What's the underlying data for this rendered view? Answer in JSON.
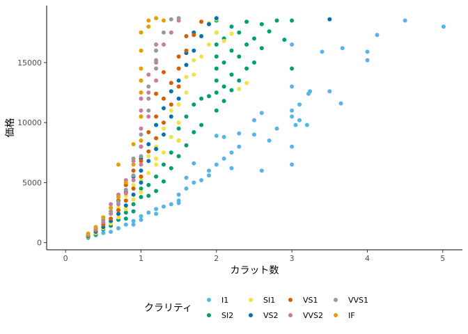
{
  "chart_data": {
    "type": "scatter",
    "xlabel": "カラット数",
    "ylabel": "価格",
    "xlim": [
      0,
      5.01
    ],
    "ylim": [
      326,
      18823
    ],
    "x_ticks": [
      "0",
      "1",
      "2",
      "3",
      "4",
      "5"
    ],
    "y_ticks": [
      "0",
      "5000",
      "10000",
      "15000"
    ],
    "legend_title": "クラリティ",
    "legend_position": "bottom",
    "grid": false,
    "series": [
      {
        "name": "I1",
        "color": "#56B4E9",
        "points": [
          [
            0.3,
            400
          ],
          [
            0.4,
            600
          ],
          [
            0.5,
            800
          ],
          [
            0.6,
            900
          ],
          [
            0.7,
            1200
          ],
          [
            0.8,
            1500
          ],
          [
            0.9,
            1800
          ],
          [
            1.0,
            2200
          ],
          [
            1.1,
            2500
          ],
          [
            1.2,
            2800
          ],
          [
            1.3,
            3000
          ],
          [
            1.4,
            3200
          ],
          [
            1.5,
            3500
          ],
          [
            1.5,
            4000
          ],
          [
            1.6,
            4500
          ],
          [
            1.7,
            5000
          ],
          [
            1.8,
            5200
          ],
          [
            1.9,
            6000
          ],
          [
            2.0,
            6500
          ],
          [
            2.1,
            7000
          ],
          [
            2.2,
            7500
          ],
          [
            2.3,
            8000
          ],
          [
            2.5,
            9000
          ],
          [
            2.6,
            6000
          ],
          [
            2.7,
            8500
          ],
          [
            2.8,
            9500
          ],
          [
            3.0,
            6500
          ],
          [
            3.0,
            8000
          ],
          [
            3.0,
            10500
          ],
          [
            3.0,
            11000
          ],
          [
            3.0,
            13000
          ],
          [
            3.0,
            16500
          ],
          [
            3.05,
            9800
          ],
          [
            3.1,
            10200
          ],
          [
            3.1,
            11500
          ],
          [
            3.2,
            9800
          ],
          [
            3.22,
            12400
          ],
          [
            3.24,
            12600
          ],
          [
            3.4,
            15900
          ],
          [
            3.5,
            12600
          ],
          [
            3.65,
            11600
          ],
          [
            3.67,
            16200
          ],
          [
            4.0,
            15200
          ],
          [
            4.0,
            15900
          ],
          [
            4.13,
            17300
          ],
          [
            4.5,
            18500
          ],
          [
            5.01,
            18000
          ],
          [
            2.0,
            8900
          ],
          [
            2.1,
            8800
          ],
          [
            1.7,
            6600
          ],
          [
            1.5,
            3300
          ],
          [
            1.2,
            2400
          ],
          [
            1.0,
            1900
          ],
          [
            0.9,
            1500
          ],
          [
            1.6,
            5400
          ],
          [
            2.3,
            9100
          ],
          [
            2.5,
            10200
          ],
          [
            2.6,
            10800
          ],
          [
            2.2,
            6200
          ],
          [
            1.9,
            5600
          ]
        ]
      },
      {
        "name": "SI2",
        "color": "#009E73",
        "points": [
          [
            0.3,
            450
          ],
          [
            0.4,
            700
          ],
          [
            0.5,
            1100
          ],
          [
            0.6,
            1400
          ],
          [
            0.7,
            1900
          ],
          [
            0.8,
            2500
          ],
          [
            0.9,
            3200
          ],
          [
            1.0,
            3800
          ],
          [
            1.0,
            4500
          ],
          [
            1.1,
            4800
          ],
          [
            1.2,
            5500
          ],
          [
            1.3,
            6500
          ],
          [
            1.4,
            7500
          ],
          [
            1.5,
            8500
          ],
          [
            1.5,
            9500
          ],
          [
            1.6,
            10500
          ],
          [
            1.7,
            11500
          ],
          [
            1.8,
            12000
          ],
          [
            2.0,
            12500
          ],
          [
            2.0,
            13500
          ],
          [
            2.0,
            14500
          ],
          [
            2.0,
            15500
          ],
          [
            2.0,
            16500
          ],
          [
            2.0,
            17500
          ],
          [
            2.0,
            18500
          ],
          [
            2.1,
            13000
          ],
          [
            2.1,
            15000
          ],
          [
            2.1,
            17000
          ],
          [
            2.2,
            14000
          ],
          [
            2.2,
            16000
          ],
          [
            2.2,
            18000
          ],
          [
            2.3,
            13500
          ],
          [
            2.3,
            15500
          ],
          [
            2.3,
            17500
          ],
          [
            2.4,
            14500
          ],
          [
            2.4,
            16500
          ],
          [
            2.4,
            18400
          ],
          [
            2.5,
            15000
          ],
          [
            2.5,
            17000
          ],
          [
            2.6,
            16200
          ],
          [
            2.6,
            18200
          ],
          [
            2.7,
            17600
          ],
          [
            2.8,
            18500
          ],
          [
            2.9,
            16900
          ],
          [
            3.0,
            14500
          ],
          [
            3.0,
            18500
          ],
          [
            1.9,
            12200
          ],
          [
            1.8,
            9800
          ],
          [
            1.6,
            8100
          ],
          [
            1.4,
            6200
          ],
          [
            1.3,
            5100
          ],
          [
            1.2,
            4300
          ],
          [
            1.1,
            3900
          ],
          [
            0.9,
            2600
          ],
          [
            0.8,
            2000
          ],
          [
            1.7,
            9200
          ],
          [
            1.5,
            7200
          ],
          [
            2.0,
            11000
          ],
          [
            2.1,
            11800
          ],
          [
            2.2,
            12700
          ]
        ]
      },
      {
        "name": "SI1",
        "color": "#F0E442",
        "points": [
          [
            0.3,
            500
          ],
          [
            0.4,
            800
          ],
          [
            0.5,
            1200
          ],
          [
            0.6,
            1600
          ],
          [
            0.7,
            2100
          ],
          [
            0.8,
            2800
          ],
          [
            0.9,
            3600
          ],
          [
            1.0,
            4200
          ],
          [
            1.0,
            5200
          ],
          [
            1.1,
            5800
          ],
          [
            1.2,
            6500
          ],
          [
            1.3,
            7500
          ],
          [
            1.4,
            8800
          ],
          [
            1.5,
            10000
          ],
          [
            1.5,
            11500
          ],
          [
            1.6,
            12500
          ],
          [
            1.7,
            14000
          ],
          [
            1.8,
            15500
          ],
          [
            1.9,
            16500
          ],
          [
            2.0,
            17500
          ],
          [
            2.0,
            18600
          ],
          [
            1.5,
            13000
          ],
          [
            1.2,
            8000
          ],
          [
            1.0,
            6500
          ],
          [
            1.1,
            7200
          ],
          [
            1.3,
            9500
          ],
          [
            1.4,
            11000
          ],
          [
            1.6,
            13800
          ],
          [
            1.7,
            15200
          ],
          [
            1.8,
            17200
          ],
          [
            1.9,
            18300
          ],
          [
            2.1,
            16800
          ],
          [
            2.2,
            17400
          ],
          [
            2.3,
            12800
          ],
          [
            2.4,
            13300
          ],
          [
            0.9,
            4800
          ],
          [
            0.8,
            3900
          ],
          [
            0.7,
            2900
          ],
          [
            1.2,
            7000
          ],
          [
            1.5,
            8500
          ]
        ]
      },
      {
        "name": "VS2",
        "color": "#0072B2",
        "points": [
          [
            0.3,
            550
          ],
          [
            0.4,
            900
          ],
          [
            0.5,
            1300
          ],
          [
            0.6,
            1800
          ],
          [
            0.7,
            2400
          ],
          [
            0.8,
            3100
          ],
          [
            0.9,
            4000
          ],
          [
            1.0,
            5000
          ],
          [
            1.0,
            6000
          ],
          [
            1.1,
            6800
          ],
          [
            1.2,
            7800
          ],
          [
            1.3,
            9000
          ],
          [
            1.4,
            10500
          ],
          [
            1.5,
            12000
          ],
          [
            1.5,
            13500
          ],
          [
            1.6,
            14800
          ],
          [
            1.7,
            16000
          ],
          [
            1.8,
            17200
          ],
          [
            1.9,
            18200
          ],
          [
            2.0,
            18700
          ],
          [
            3.5,
            18600
          ],
          [
            1.2,
            9800
          ],
          [
            1.3,
            11200
          ],
          [
            1.4,
            12600
          ],
          [
            1.6,
            15800
          ],
          [
            1.7,
            17500
          ],
          [
            1.0,
            7000
          ],
          [
            1.1,
            8200
          ],
          [
            0.9,
            5500
          ],
          [
            0.8,
            4200
          ]
        ]
      },
      {
        "name": "VS1",
        "color": "#D55E00",
        "points": [
          [
            0.3,
            600
          ],
          [
            0.4,
            1000
          ],
          [
            0.5,
            1500
          ],
          [
            0.6,
            2000
          ],
          [
            0.7,
            2700
          ],
          [
            0.8,
            3500
          ],
          [
            0.9,
            4500
          ],
          [
            1.0,
            5500
          ],
          [
            1.0,
            6800
          ],
          [
            1.1,
            7600
          ],
          [
            1.2,
            8700
          ],
          [
            1.3,
            10000
          ],
          [
            1.4,
            11500
          ],
          [
            1.5,
            13000
          ],
          [
            1.5,
            14500
          ],
          [
            1.6,
            16000
          ],
          [
            1.7,
            17300
          ],
          [
            1.8,
            18400
          ],
          [
            1.2,
            10500
          ],
          [
            1.1,
            9200
          ],
          [
            1.0,
            8000
          ],
          [
            1.3,
            12000
          ],
          [
            1.4,
            13300
          ],
          [
            1.5,
            15500
          ],
          [
            1.6,
            17200
          ],
          [
            0.9,
            6000
          ],
          [
            0.8,
            4800
          ],
          [
            0.7,
            3500
          ],
          [
            1.2,
            12400
          ],
          [
            1.3,
            14200
          ]
        ]
      },
      {
        "name": "VVS2",
        "color": "#CC79A7",
        "points": [
          [
            0.3,
            650
          ],
          [
            0.4,
            1100
          ],
          [
            0.5,
            1700
          ],
          [
            0.6,
            2400
          ],
          [
            0.7,
            3200
          ],
          [
            0.8,
            4100
          ],
          [
            0.9,
            5200
          ],
          [
            1.0,
            6500
          ],
          [
            1.0,
            8000
          ],
          [
            1.0,
            9500
          ],
          [
            1.0,
            11000
          ],
          [
            1.1,
            10500
          ],
          [
            1.1,
            12500
          ],
          [
            1.2,
            13500
          ],
          [
            1.2,
            15000
          ],
          [
            1.3,
            16500
          ],
          [
            1.4,
            17500
          ],
          [
            1.5,
            18500
          ],
          [
            0.8,
            5200
          ],
          [
            0.7,
            4000
          ],
          [
            1.1,
            14000
          ],
          [
            1.2,
            16500
          ],
          [
            1.0,
            12000
          ],
          [
            0.9,
            6800
          ],
          [
            0.6,
            3200
          ]
        ]
      },
      {
        "name": "VVS1",
        "color": "#999999",
        "points": [
          [
            0.3,
            700
          ],
          [
            0.4,
            1200
          ],
          [
            0.5,
            1900
          ],
          [
            0.6,
            2600
          ],
          [
            0.7,
            3400
          ],
          [
            0.8,
            4400
          ],
          [
            0.9,
            5600
          ],
          [
            1.0,
            7200
          ],
          [
            1.0,
            9000
          ],
          [
            1.1,
            11000
          ],
          [
            1.1,
            13000
          ],
          [
            1.2,
            14500
          ],
          [
            1.2,
            16000
          ],
          [
            1.3,
            17500
          ],
          [
            1.4,
            18600
          ],
          [
            1.5,
            18700
          ],
          [
            0.9,
            7000
          ],
          [
            1.0,
            10500
          ],
          [
            1.1,
            12000
          ],
          [
            1.2,
            15200
          ]
        ]
      },
      {
        "name": "IF",
        "color": "#E69F00",
        "points": [
          [
            0.3,
            750
          ],
          [
            0.4,
            1300
          ],
          [
            0.5,
            2100
          ],
          [
            0.6,
            2900
          ],
          [
            0.7,
            3800
          ],
          [
            0.8,
            5000
          ],
          [
            0.9,
            6500
          ],
          [
            1.0,
            8500
          ],
          [
            1.0,
            10500
          ],
          [
            1.0,
            12500
          ],
          [
            1.0,
            14500
          ],
          [
            1.0,
            16000
          ],
          [
            1.0,
            17500
          ],
          [
            1.1,
            18000
          ],
          [
            1.1,
            18500
          ],
          [
            1.2,
            18700
          ],
          [
            1.3,
            18500
          ],
          [
            0.7,
            6500
          ],
          [
            0.9,
            8200
          ],
          [
            1.0,
            13500
          ]
        ]
      }
    ]
  }
}
